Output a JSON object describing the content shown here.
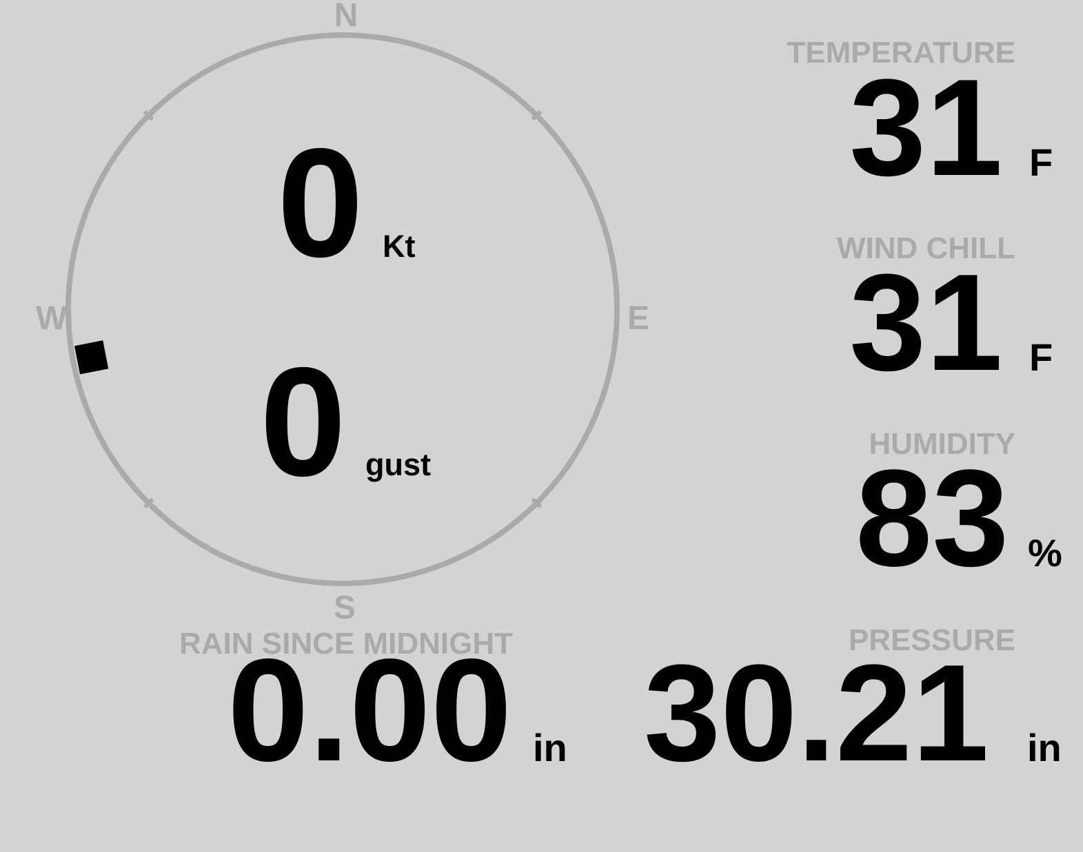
{
  "colors": {
    "background": "#d3d3d3",
    "label": "#aaaaaa",
    "value": "#000000",
    "ring": "#aaaaaa"
  },
  "compass": {
    "north": "N",
    "east": "E",
    "south": "S",
    "west": "W",
    "wind_direction_deg": 259,
    "marker_icon": "wind-direction-marker"
  },
  "wind": {
    "speed": "0",
    "speed_unit": "Kt",
    "gust": "0",
    "gust_unit": "gust"
  },
  "temperature": {
    "label": "TEMPERATURE",
    "value": "31",
    "unit": "F"
  },
  "wind_chill": {
    "label": "WIND CHILL",
    "value": "31",
    "unit": "F"
  },
  "humidity": {
    "label": "HUMIDITY",
    "value": "83",
    "unit": "%"
  },
  "rain": {
    "label": "RAIN SINCE MIDNIGHT",
    "value": "0.00",
    "unit": "in"
  },
  "pressure": {
    "label": "PRESSURE",
    "value": "30.21",
    "unit": "in"
  }
}
